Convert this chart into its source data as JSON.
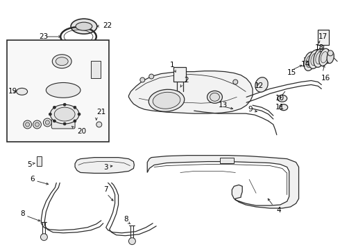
{
  "bg_color": "#ffffff",
  "line_color": "#2a2a2a",
  "label_color": "#000000",
  "fig_width": 4.9,
  "fig_height": 3.6,
  "dpi": 100,
  "font_size": 7.5
}
